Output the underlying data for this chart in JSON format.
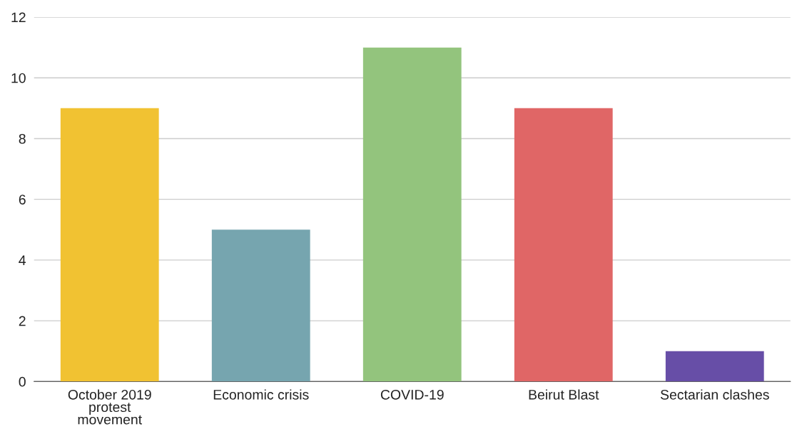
{
  "chart_data": {
    "type": "bar",
    "categories": [
      "October 2019\nprotest\nmovement",
      "Economic crisis",
      "COVID-19",
      "Beirut Blast",
      "Sectarian clashes"
    ],
    "values": [
      9,
      5,
      11,
      9,
      1
    ],
    "colors": [
      "#f1c232",
      "#76a5af",
      "#93c47d",
      "#e06666",
      "#674ea7"
    ],
    "ylim": [
      0,
      12
    ],
    "yticks": [
      0,
      2,
      4,
      6,
      8,
      10,
      12
    ],
    "grid": "y",
    "legend": false
  }
}
